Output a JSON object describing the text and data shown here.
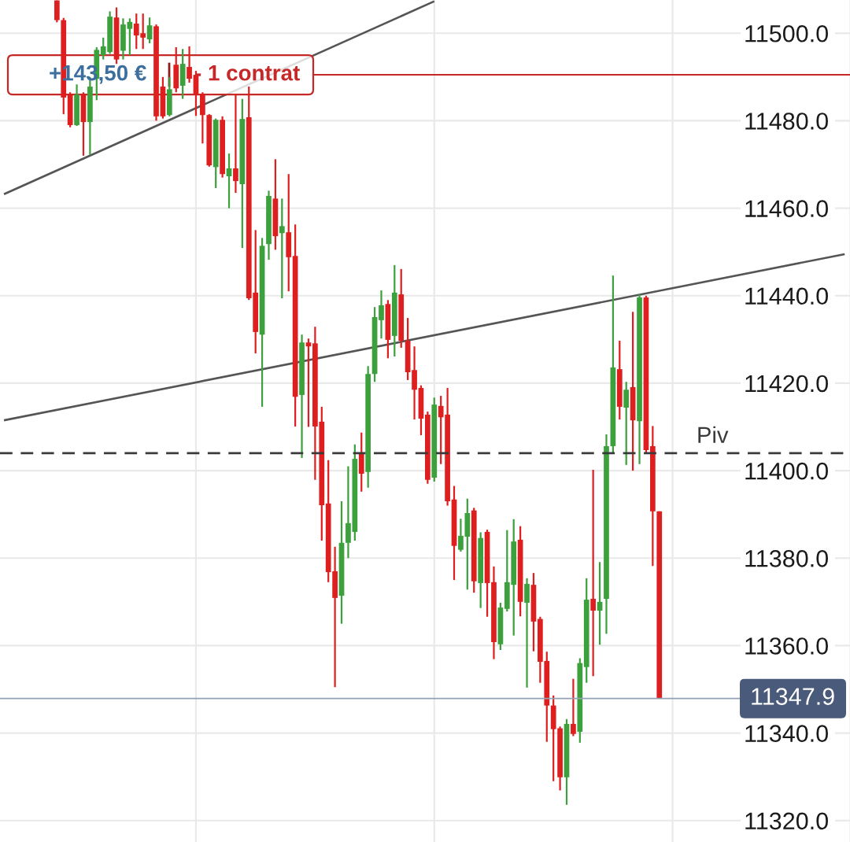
{
  "chart_data": {
    "type": "candlestick",
    "categories": [
      null,
      null,
      null,
      null,
      null,
      null,
      null,
      null,
      null,
      null,
      null,
      null,
      null,
      null,
      null,
      null,
      null,
      null,
      null,
      null,
      null,
      null,
      null,
      null,
      null,
      null,
      null,
      null,
      null,
      null,
      null,
      null,
      null,
      null,
      null,
      null,
      null,
      null,
      null,
      null,
      null,
      null,
      null,
      null,
      null,
      null,
      null,
      null,
      null,
      null,
      null,
      null,
      null,
      null,
      null,
      null,
      null,
      null,
      null,
      null,
      null,
      null,
      null,
      null,
      null,
      null,
      null,
      null,
      null,
      null,
      null,
      null,
      null,
      null,
      null,
      null,
      null,
      null,
      null,
      null,
      null,
      null,
      null,
      null,
      null,
      null,
      null,
      null,
      null,
      null,
      null,
      null,
      null,
      null,
      null,
      null,
      null,
      null,
      null,
      null,
      null,
      null,
      null,
      null,
      null,
      null,
      null,
      null,
      null,
      null,
      null,
      null,
      null,
      null,
      null,
      null,
      null,
      null,
      null,
      null,
      null,
      null,
      null,
      null,
      null,
      null,
      null,
      null
    ],
    "ohlc": [
      null,
      null,
      null,
      null,
      null,
      null,
      null,
      null,
      [
        11507.5,
        11507.5,
        11502.5,
        11503
      ],
      [
        11503,
        11503.5,
        11481.5,
        11485.3
      ],
      [
        11486,
        11486.5,
        11478.5,
        11479
      ],
      [
        11479,
        11488.3,
        11478.8,
        11486
      ],
      [
        11486,
        11486.5,
        11472,
        11479.7
      ],
      [
        11479.7,
        11490,
        11472.2,
        11487.8
      ],
      [
        11489.6,
        11496.8,
        11484.7,
        11496.2
      ],
      [
        11495,
        11499,
        11494,
        11497
      ],
      [
        11495.7,
        11505,
        11495.3,
        11503.8
      ],
      [
        11503.6,
        11505.9,
        11493,
        11494
      ],
      [
        11496,
        11503.4,
        11494,
        11502
      ],
      [
        11501,
        11503.4,
        11495,
        11502.6
      ],
      [
        11502.2,
        11504.5,
        11496.4,
        11499.5
      ],
      [
        11500,
        11504.5,
        11496.4,
        11499
      ],
      [
        11498.6,
        11503.6,
        11497.7,
        11501.8
      ],
      [
        11501.6,
        11502,
        11480,
        11481
      ],
      [
        11487.8,
        11490,
        11480.5,
        11481
      ],
      [
        11481.3,
        11490,
        11481,
        11487.2
      ],
      [
        11492.8,
        11496.8,
        11486.5,
        11487.4
      ],
      [
        11488,
        11496.4,
        11485,
        11493
      ],
      [
        11492.3,
        11497,
        11488.7,
        11489.6
      ],
      [
        11490.5,
        11491.4,
        11481.1,
        11486
      ],
      [
        11486,
        11486.5,
        11474.8,
        11481.3
      ],
      [
        11481.3,
        11481.5,
        11469.5,
        11469.8
      ],
      [
        11469.4,
        11480.5,
        11464.6,
        11480.2
      ],
      [
        11480.2,
        11481,
        11467,
        11467.8
      ],
      [
        11467.3,
        11472.5,
        11460,
        11469.1
      ],
      [
        11469.1,
        11486,
        11463.5,
        11466.2
      ],
      [
        11465.5,
        11485,
        11450.9,
        11480.4
      ],
      [
        11480.8,
        11487.8,
        11439,
        11439.4
      ],
      [
        11440.7,
        11455,
        11426.8,
        11431.7
      ],
      [
        11431.1,
        11453.2,
        11414.6,
        11451.4
      ],
      [
        11451.8,
        11464,
        11448.2,
        11462.8
      ],
      [
        11462.2,
        11471.2,
        11450.5,
        11453.6
      ],
      [
        11454.3,
        11462.2,
        11439.4,
        11455.9
      ],
      [
        11454.5,
        11467.8,
        11441,
        11448.8
      ],
      [
        11449.1,
        11456.3,
        11410.1,
        11416.9
      ],
      [
        11417.3,
        11431.1,
        11402.9,
        11429.3
      ],
      [
        11429.3,
        11430.2,
        11410,
        11428.4
      ],
      [
        11429.1,
        11432.9,
        11397.9,
        11410.1
      ],
      [
        11411.2,
        11414.6,
        11384,
        11392.1
      ],
      [
        11392.5,
        11402.4,
        11374.5,
        11376.8
      ],
      [
        11377,
        11382.6,
        11350.5,
        11370.9
      ],
      [
        11371.4,
        11393,
        11365,
        11383.5
      ],
      [
        11383.5,
        11401,
        11380,
        11388
      ],
      [
        11386,
        11406,
        11384,
        11402.7
      ],
      [
        11403.8,
        11408.7,
        11395.2,
        11399.3
      ],
      [
        11399.7,
        11423.9,
        11396.1,
        11422.1
      ],
      [
        11422.1,
        11437.4,
        11420.3,
        11435.1
      ],
      [
        11434.4,
        11441.2,
        11430.2,
        11437.8
      ],
      [
        11438.1,
        11439,
        11425.7,
        11429.9
      ],
      [
        11430.8,
        11447,
        11426.1,
        11440.7
      ],
      [
        11440.3,
        11446.1,
        11428.1,
        11429.7
      ],
      [
        11429.7,
        11434.9,
        11420.7,
        11422.5
      ],
      [
        11423,
        11428.4,
        11411.7,
        11418.5
      ],
      [
        11418.9,
        11419.5,
        11408.1,
        11411.9
      ],
      [
        11412.8,
        11413.5,
        11397,
        11397.9
      ],
      [
        11398.4,
        11416.7,
        11397.5,
        11415.1
      ],
      [
        11414.8,
        11417.1,
        11401.5,
        11412.2
      ],
      [
        11412.8,
        11418.9,
        11392,
        11393
      ],
      [
        11393.4,
        11396.5,
        11375,
        11382.8
      ],
      [
        11381.9,
        11389,
        11381.5,
        11385.1
      ],
      [
        11384.9,
        11393.6,
        11372.8,
        11390.3
      ],
      [
        11390.9,
        11391.5,
        11372.1,
        11374.7
      ],
      [
        11374.3,
        11385.9,
        11368.6,
        11384.6
      ],
      [
        11386,
        11386.5,
        11366.6,
        11374.3
      ],
      [
        11374.5,
        11378.1,
        11356.9,
        11360.8
      ],
      [
        11360.3,
        11369.8,
        11359,
        11368.7
      ],
      [
        11368.4,
        11386.4,
        11367.8,
        11374.5
      ],
      [
        11373.9,
        11388.9,
        11362.3,
        11383.8
      ],
      [
        11384.2,
        11387.3,
        11366.7,
        11370
      ],
      [
        11369.8,
        11375.4,
        11350.4,
        11374.1
      ],
      [
        11373.9,
        11376.6,
        11358.7,
        11365.5
      ],
      [
        11366.1,
        11366.6,
        11351.5,
        11356.3
      ],
      [
        11356.5,
        11358.6,
        11338,
        11346.3
      ],
      [
        11346.3,
        11348.6,
        11329,
        11340.9
      ],
      [
        11341.1,
        11341.5,
        11326.9,
        11329.9
      ],
      [
        11329.9,
        11343.2,
        11323.6,
        11342.1
      ],
      [
        11342.1,
        11352.4,
        11339.3,
        11339.8
      ],
      [
        11340.3,
        11357.1,
        11337.8,
        11356
      ],
      [
        11355.1,
        11375.4,
        11351.5,
        11370.5
      ],
      [
        11370.7,
        11400.2,
        11353,
        11368
      ],
      [
        11368,
        11379.1,
        11360.2,
        11370
      ],
      [
        11370.7,
        11408.3,
        11362.7,
        11405.6
      ],
      [
        11405.6,
        11444.6,
        11404,
        11423.6
      ],
      [
        11423.2,
        11429.7,
        11411.7,
        11414.6
      ],
      [
        11414.4,
        11420.3,
        11401.3,
        11418.5
      ],
      [
        11419.1,
        11436.3,
        11400,
        11411.5
      ],
      [
        11411.3,
        11440.3,
        11401.5,
        11439.6
      ],
      [
        11439.6,
        11440,
        11404,
        11404.7
      ],
      [
        11405.6,
        11410.2,
        11378.2,
        11390.7
      ],
      [
        11390.7,
        11390.7,
        11347.9,
        11347.9
      ],
      null,
      null,
      null,
      null,
      null,
      null,
      null,
      null,
      null,
      null,
      null,
      null,
      null,
      null,
      null,
      null,
      null,
      null,
      null,
      null,
      null,
      null,
      null,
      null,
      null,
      null,
      null,
      null
    ],
    "colors": [
      null,
      null,
      null,
      null,
      null,
      null,
      null,
      null,
      "#dd1f1f",
      "#dd1f1f",
      "#dd1f1f",
      "#3ca03c",
      "#dd1f1f",
      "#3ca03c",
      "#3ca03c",
      "#3ca03c",
      "#3ca03c",
      "#dd1f1f",
      "#3ca03c",
      "#3ca03c",
      "#dd1f1f",
      "#dd1f1f",
      "#3ca03c",
      "#dd1f1f",
      "#dd1f1f",
      "#3ca03c",
      "#dd1f1f",
      "#3ca03c",
      "#dd1f1f",
      "#dd1f1f",
      "#dd1f1f",
      "#dd1f1f",
      "#3ca03c",
      "#dd1f1f",
      "#3ca03c",
      "#dd1f1f",
      "#3ca03c",
      "#dd1f1f",
      "#dd1f1f",
      "#3ca03c",
      "#3ca03c",
      "#dd1f1f",
      "#3ca03c",
      "#dd1f1f",
      "#dd1f1f",
      "#3ca03c",
      "#dd1f1f",
      "#dd1f1f",
      "#dd1f1f",
      "#dd1f1f",
      "#dd1f1f",
      "#3ca03c",
      "#3ca03c",
      "#3ca03c",
      "#dd1f1f",
      "#3ca03c",
      "#3ca03c",
      "#3ca03c",
      "#dd1f1f",
      "#3ca03c",
      "#dd1f1f",
      "#dd1f1f",
      "#dd1f1f",
      "#dd1f1f",
      "#dd1f1f",
      "#3ca03c",
      "#dd1f1f",
      "#dd1f1f",
      "#dd1f1f",
      "#3ca03c",
      "#3ca03c",
      "#dd1f1f",
      "#3ca03c",
      "#dd1f1f",
      "#dd1f1f",
      "#3ca03c",
      "#3ca03c",
      "#3ca03c",
      "#dd1f1f",
      "#3ca03c",
      "#dd1f1f",
      "#dd1f1f",
      "#dd1f1f",
      "#dd1f1f",
      "#dd1f1f",
      "#3ca03c",
      "#dd1f1f",
      "#3ca03c",
      "#3ca03c",
      "#dd1f1f",
      "#3ca03c",
      "#3ca03c",
      "#3ca03c",
      "#dd1f1f",
      "#3ca03c",
      "#dd1f1f",
      "#3ca03c",
      "#dd1f1f",
      "#dd1f1f",
      "#dd1f1f",
      null,
      null,
      null,
      null,
      null,
      null,
      null,
      null,
      null,
      null,
      null,
      null,
      null,
      null,
      null,
      null,
      null,
      null,
      null,
      null,
      null,
      null,
      null,
      null,
      null,
      null,
      null,
      null
    ],
    "series": [
      {
        "type": "line",
        "color": "#555555",
        "values": [
          11463.2,
          null,
          null,
          null,
          null,
          null,
          null,
          null,
          null,
          null,
          null,
          null,
          null,
          null,
          null,
          null,
          null,
          null,
          null,
          null,
          null,
          null,
          null,
          null,
          null,
          null,
          null,
          null,
          null,
          null,
          null,
          null,
          null,
          null,
          null,
          null,
          null,
          null,
          null,
          null,
          null,
          null,
          null,
          null,
          null,
          null,
          null,
          null,
          null,
          null,
          null,
          null,
          null,
          null,
          null,
          null,
          null,
          null,
          null,
          null,
          null,
          null,
          null,
          null,
          null,
          11507.3,
          null,
          null,
          null,
          null,
          null,
          null,
          null,
          null,
          null,
          null,
          null,
          null,
          null,
          null,
          null,
          null,
          null,
          null,
          null,
          null,
          null,
          null,
          null,
          null,
          null,
          null,
          null,
          null,
          null,
          null,
          null,
          null,
          null,
          null,
          null,
          null,
          null,
          null,
          null,
          null,
          null,
          null,
          null,
          null,
          null,
          null,
          null,
          null,
          null,
          null,
          null,
          null,
          null,
          null,
          null,
          null,
          null,
          null,
          null,
          null,
          null,
          null
        ]
      },
      {
        "type": "line",
        "color": "#555555",
        "values": [
          11411.5,
          null,
          null,
          null,
          null,
          null,
          null,
          null,
          null,
          null,
          null,
          null,
          null,
          null,
          null,
          null,
          null,
          null,
          null,
          null,
          null,
          null,
          null,
          null,
          null,
          null,
          null,
          null,
          null,
          null,
          null,
          null,
          null,
          null,
          null,
          null,
          null,
          null,
          null,
          null,
          null,
          null,
          null,
          null,
          null,
          null,
          null,
          null,
          null,
          null,
          null,
          null,
          null,
          null,
          null,
          null,
          null,
          null,
          null,
          null,
          null,
          null,
          null,
          null,
          null,
          null,
          null,
          null,
          null,
          null,
          null,
          null,
          null,
          null,
          null,
          null,
          null,
          null,
          null,
          null,
          null,
          null,
          null,
          null,
          null,
          null,
          null,
          null,
          null,
          null,
          null,
          null,
          null,
          null,
          null,
          null,
          null,
          null,
          null,
          null,
          null,
          null,
          null,
          null,
          null,
          null,
          null,
          null,
          null,
          null,
          null,
          null,
          null,
          null,
          null,
          null,
          null,
          null,
          null,
          null,
          null,
          null,
          null,
          null,
          null,
          null,
          null,
          11449.5
        ]
      }
    ],
    "ylim": [
      11315.1,
      11507.6
    ],
    "yticks": [
      {
        "value": 11320,
        "label": "11320.0"
      },
      {
        "value": 11340,
        "label": "11340.0"
      },
      {
        "value": 11360,
        "label": "11360.0"
      },
      {
        "value": 11380,
        "label": "11380.0"
      },
      {
        "value": 11400,
        "label": "11400.0"
      },
      {
        "value": 11420,
        "label": "11420.0"
      },
      {
        "value": 11440,
        "label": "11440.0"
      },
      {
        "value": 11460,
        "label": "11460.0"
      },
      {
        "value": 11480,
        "label": "11480.0"
      },
      {
        "value": 11500,
        "label": "11500.0"
      }
    ],
    "ref_lines": [
      {
        "axis": "y",
        "value": 11490.5,
        "label": "- 1 contrat",
        "color": "#c62828"
      },
      {
        "axis": "y",
        "value": 11404,
        "label": "Piv",
        "color": "#3a3a3a",
        "line_style": "dashed"
      },
      {
        "axis": "y",
        "value": 11347.9,
        "label": "11347.9",
        "color": "#93a1b5"
      }
    ],
    "annotations": [
      {
        "text": "+143,50 €",
        "y": 11490.5
      }
    ],
    "grid": true,
    "tick_labels": "y"
  }
}
